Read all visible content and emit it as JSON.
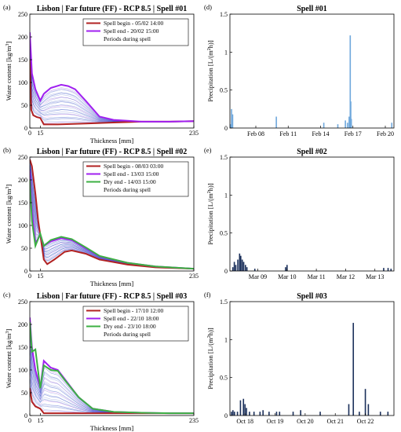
{
  "chart_data": [
    {
      "type": "line",
      "panel_label": "(a)",
      "title": "Lisbon | Far future (FF) - RCP 8.5 | Spell #01",
      "xlabel": "Thickness [mm]",
      "ylabel": "Water content [kg/m",
      "ylabel_sup": "3",
      "ylabel_end": "]",
      "xlim": [
        0,
        235
      ],
      "ylim": [
        0,
        250
      ],
      "x_ticks": [
        0,
        15,
        235
      ],
      "y_ticks": [
        0,
        50,
        100,
        150,
        200,
        250
      ],
      "legend_position": "top-right",
      "background_series": {
        "name": "Periods during spell",
        "color": "#1f3fbf",
        "accent": "#e04be6"
      },
      "series": [
        {
          "name": "Spell begin - 05/02 14:00",
          "color": "#b22222",
          "x": [
            0,
            2,
            5,
            10,
            15,
            20,
            40,
            80,
            120,
            160,
            200,
            235
          ],
          "y": [
            150,
            40,
            28,
            24,
            22,
            8,
            8,
            10,
            12,
            14,
            14,
            15
          ]
        },
        {
          "name": "Spell end - 20/02 15:00",
          "color": "#a020f0",
          "x": [
            0,
            3,
            8,
            15,
            20,
            30,
            45,
            55,
            65,
            80,
            100,
            120,
            160,
            200,
            235
          ],
          "y": [
            210,
            120,
            85,
            60,
            75,
            88,
            95,
            92,
            85,
            60,
            25,
            18,
            14,
            14,
            15
          ]
        }
      ]
    },
    {
      "type": "bar",
      "panel_label": "(d)",
      "title": "Spell #01",
      "ylabel": "Precipitation [L/(m",
      "ylabel_sup": "2",
      "ylabel_end": "h)]",
      "ylim": [
        0,
        1.5
      ],
      "y_ticks": [
        0,
        0.5,
        1,
        1.5
      ],
      "x_range_days": [
        5.6,
        20.8
      ],
      "x_ticks": [
        {
          "label": "Feb 08",
          "day": 8
        },
        {
          "label": "Feb 11",
          "day": 11
        },
        {
          "label": "Feb 14",
          "day": 14
        },
        {
          "label": "Feb 17",
          "day": 17
        },
        {
          "label": "Feb 20",
          "day": 20
        }
      ],
      "bar_color": "#6fa8dc",
      "points": [
        [
          5.65,
          0.05
        ],
        [
          5.75,
          0.25
        ],
        [
          5.85,
          0.18
        ],
        [
          9.9,
          0.15
        ],
        [
          14.3,
          0.07
        ],
        [
          15.6,
          0.05
        ],
        [
          16.3,
          0.1
        ],
        [
          16.5,
          0.07
        ],
        [
          16.65,
          0.15
        ],
        [
          16.75,
          1.22
        ],
        [
          16.8,
          0.35
        ],
        [
          16.85,
          0.12
        ],
        [
          20.6,
          0.07
        ]
      ]
    },
    {
      "type": "line",
      "panel_label": "(b)",
      "title": "Lisbon | Far future (FF) - RCP 8.5 | Spell #02",
      "xlabel": "Thickness [mm]",
      "ylabel": "Water content [kg/m",
      "ylabel_sup": "3",
      "ylabel_end": "]",
      "xlim": [
        0,
        235
      ],
      "ylim": [
        0,
        250
      ],
      "x_ticks": [
        0,
        15,
        235
      ],
      "y_ticks": [
        0,
        50,
        100,
        150,
        200,
        250
      ],
      "legend_position": "top-right",
      "background_series": {
        "name": "Periods during spell",
        "color": "#1f3fbf",
        "accent": "#e04be6"
      },
      "series": [
        {
          "name": "Spell begin - 08/03 03:00",
          "color": "#b22222",
          "x": [
            0,
            3,
            8,
            12,
            15,
            20,
            25,
            35,
            50,
            60,
            80,
            100,
            140,
            180,
            235
          ],
          "y": [
            245,
            230,
            170,
            110,
            80,
            25,
            15,
            25,
            42,
            45,
            38,
            25,
            14,
            8,
            5
          ]
        },
        {
          "name": "Spell end - 13/03 15:00",
          "color": "#a020f0",
          "x": [
            0,
            3,
            8,
            15,
            20,
            30,
            45,
            60,
            80,
            100,
            140,
            180,
            235
          ],
          "y": [
            220,
            130,
            60,
            80,
            55,
            65,
            72,
            68,
            50,
            32,
            18,
            10,
            5
          ]
        },
        {
          "name": "Dry end - 14/03 15:00",
          "color": "#3cb043",
          "x": [
            0,
            3,
            8,
            15,
            20,
            30,
            45,
            60,
            80,
            100,
            140,
            180,
            235
          ],
          "y": [
            200,
            110,
            55,
            82,
            55,
            68,
            75,
            70,
            52,
            33,
            18,
            10,
            5
          ]
        }
      ]
    },
    {
      "type": "bar",
      "panel_label": "(e)",
      "title": "Spell #02",
      "ylabel": "Precipitation [L/(m",
      "ylabel_sup": "2",
      "ylabel_end": "h)]",
      "ylim": [
        0,
        1.5
      ],
      "y_ticks": [
        0,
        0.5,
        1,
        1.5
      ],
      "x_range_days": [
        8.05,
        13.65
      ],
      "x_ticks": [
        {
          "label": "Mar 09",
          "day": 9
        },
        {
          "label": "Mar 10",
          "day": 10
        },
        {
          "label": "Mar 11",
          "day": 11
        },
        {
          "label": "Mar 12",
          "day": 12
        },
        {
          "label": "Mar 13",
          "day": 13
        }
      ],
      "bar_color": "#1a2f5a",
      "points": [
        [
          8.15,
          0.05
        ],
        [
          8.2,
          0.12
        ],
        [
          8.25,
          0.08
        ],
        [
          8.32,
          0.15
        ],
        [
          8.38,
          0.23
        ],
        [
          8.42,
          0.2
        ],
        [
          8.47,
          0.15
        ],
        [
          8.52,
          0.12
        ],
        [
          8.58,
          0.08
        ],
        [
          8.63,
          0.05
        ],
        [
          8.9,
          0.03
        ],
        [
          9.95,
          0.05
        ],
        [
          10.0,
          0.08
        ],
        [
          13.3,
          0.04
        ],
        [
          13.45,
          0.04
        ],
        [
          13.55,
          0.03
        ]
      ]
    },
    {
      "type": "line",
      "panel_label": "(c)",
      "title": "Lisbon | Far future (FF) - RCP 8.5 | Spell #03",
      "xlabel": "Thickness [mm]",
      "ylabel": "Water content [kg/m",
      "ylabel_sup": "3",
      "ylabel_end": "]",
      "xlim": [
        0,
        235
      ],
      "ylim": [
        0,
        250
      ],
      "x_ticks": [
        0,
        15,
        235
      ],
      "y_ticks": [
        0,
        50,
        100,
        150,
        200,
        250
      ],
      "legend_position": "top-right",
      "background_series": {
        "name": "Periods during spell",
        "color": "#1f3fbf",
        "accent": "#e04be6"
      },
      "series": [
        {
          "name": "Spell begin - 17/10 12:00",
          "color": "#b22222",
          "x": [
            0,
            3,
            8,
            15,
            20,
            40,
            80,
            120,
            160,
            200,
            235
          ],
          "y": [
            60,
            30,
            20,
            15,
            5,
            5,
            5,
            5,
            5,
            5,
            5
          ]
        },
        {
          "name": "Spell end - 22/10 18:00",
          "color": "#a020f0",
          "x": [
            0,
            3,
            8,
            15,
            20,
            30,
            40,
            50,
            70,
            90,
            120,
            160,
            200,
            235
          ],
          "y": [
            215,
            150,
            100,
            60,
            120,
            105,
            100,
            80,
            40,
            15,
            8,
            6,
            5,
            5
          ]
        },
        {
          "name": "Dry end - 23/10 18:00",
          "color": "#3cb043",
          "x": [
            0,
            3,
            8,
            15,
            20,
            30,
            40,
            50,
            70,
            90,
            120,
            160,
            200,
            235
          ],
          "y": [
            205,
            140,
            145,
            60,
            110,
            100,
            98,
            78,
            40,
            15,
            8,
            6,
            5,
            5
          ]
        }
      ]
    },
    {
      "type": "bar",
      "panel_label": "(f)",
      "title": "Spell #03",
      "ylabel": "Precipitation [L/(m",
      "ylabel_sup": "2",
      "ylabel_end": "h)]",
      "ylim": [
        0,
        1.5
      ],
      "y_ticks": [
        0,
        0.5,
        1,
        1.5
      ],
      "x_range_days": [
        17.5,
        22.95
      ],
      "x_ticks": [
        {
          "label": "Oct 18",
          "day": 18
        },
        {
          "label": "Oct 19",
          "day": 19
        },
        {
          "label": "Oct 20",
          "day": 20
        },
        {
          "label": "Oct 21",
          "day": 21
        },
        {
          "label": "Oct 22",
          "day": 22
        }
      ],
      "bar_color": "#1a2f5a",
      "points": [
        [
          17.55,
          0.05
        ],
        [
          17.6,
          0.07
        ],
        [
          17.65,
          0.05
        ],
        [
          17.75,
          0.05
        ],
        [
          17.85,
          0.2
        ],
        [
          17.95,
          0.22
        ],
        [
          18.0,
          0.15
        ],
        [
          18.05,
          0.1
        ],
        [
          18.15,
          0.05
        ],
        [
          18.3,
          0.05
        ],
        [
          18.5,
          0.05
        ],
        [
          18.6,
          0.07
        ],
        [
          18.8,
          0.05
        ],
        [
          19.05,
          0.05
        ],
        [
          19.15,
          0.05
        ],
        [
          19.6,
          0.05
        ],
        [
          19.85,
          0.07
        ],
        [
          20.5,
          0.05
        ],
        [
          21.45,
          0.15
        ],
        [
          21.6,
          1.22
        ],
        [
          21.8,
          0.05
        ],
        [
          22.0,
          0.35
        ],
        [
          22.1,
          0.15
        ],
        [
          22.5,
          0.05
        ],
        [
          22.75,
          0.05
        ]
      ]
    }
  ]
}
